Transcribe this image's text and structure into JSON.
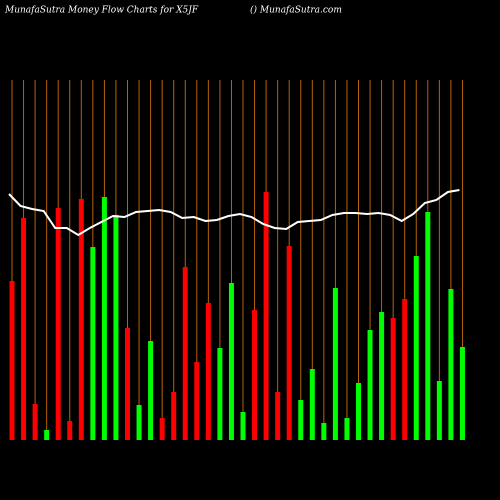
{
  "chart_data": {
    "type": "bar",
    "title": "MunafaSutra  Money Flow  Charts for X5JF",
    "subtitle": "() MunafaSutra.com",
    "ylim": [
      0,
      360
    ],
    "grid": true,
    "grid_color": "#b8620a",
    "series": [
      {
        "type": "bar",
        "colors": [
          "#ff0000",
          "#ff0000",
          "#ff0000",
          "#00ff00",
          "#ff0000",
          "#ff0000",
          "#ff0000",
          "#00ff00",
          "#00ff00",
          "#00ff00",
          "#ff0000",
          "#00ff00",
          "#00ff00",
          "#ff0000",
          "#ff0000",
          "#ff0000",
          "#ff0000",
          "#ff0000",
          "#00ff00",
          "#00ff00",
          "#00ff00",
          "#ff0000",
          "#ff0000",
          "#ff0000",
          "#ff0000",
          "#00ff00",
          "#00ff00",
          "#00ff00",
          "#00ff00",
          "#00ff00",
          "#00ff00",
          "#00ff00",
          "#00ff00",
          "#ff0000",
          "#ff0000",
          "#00ff00",
          "#00ff00",
          "#00ff00",
          "#00ff00",
          "#00ff00"
        ],
        "values": [
          159,
          222,
          36,
          10,
          232,
          19,
          241,
          193,
          243,
          225,
          112,
          35,
          99,
          22,
          48,
          173,
          78,
          137,
          92,
          157,
          28,
          130,
          248,
          48,
          194,
          40,
          71,
          17,
          152,
          22,
          57,
          110,
          128,
          122,
          141,
          184,
          228,
          59,
          151,
          93
        ]
      },
      {
        "type": "line",
        "color": "#ffffff",
        "values": [
          246,
          234,
          231,
          229,
          212,
          212,
          205,
          212,
          218,
          224,
          223,
          228,
          229,
          230,
          228,
          222,
          223,
          219,
          220,
          224,
          226,
          223,
          216,
          212,
          211,
          218,
          219,
          220,
          225,
          227,
          227,
          226,
          227,
          225,
          219,
          226,
          237,
          240,
          248,
          250
        ]
      }
    ]
  }
}
